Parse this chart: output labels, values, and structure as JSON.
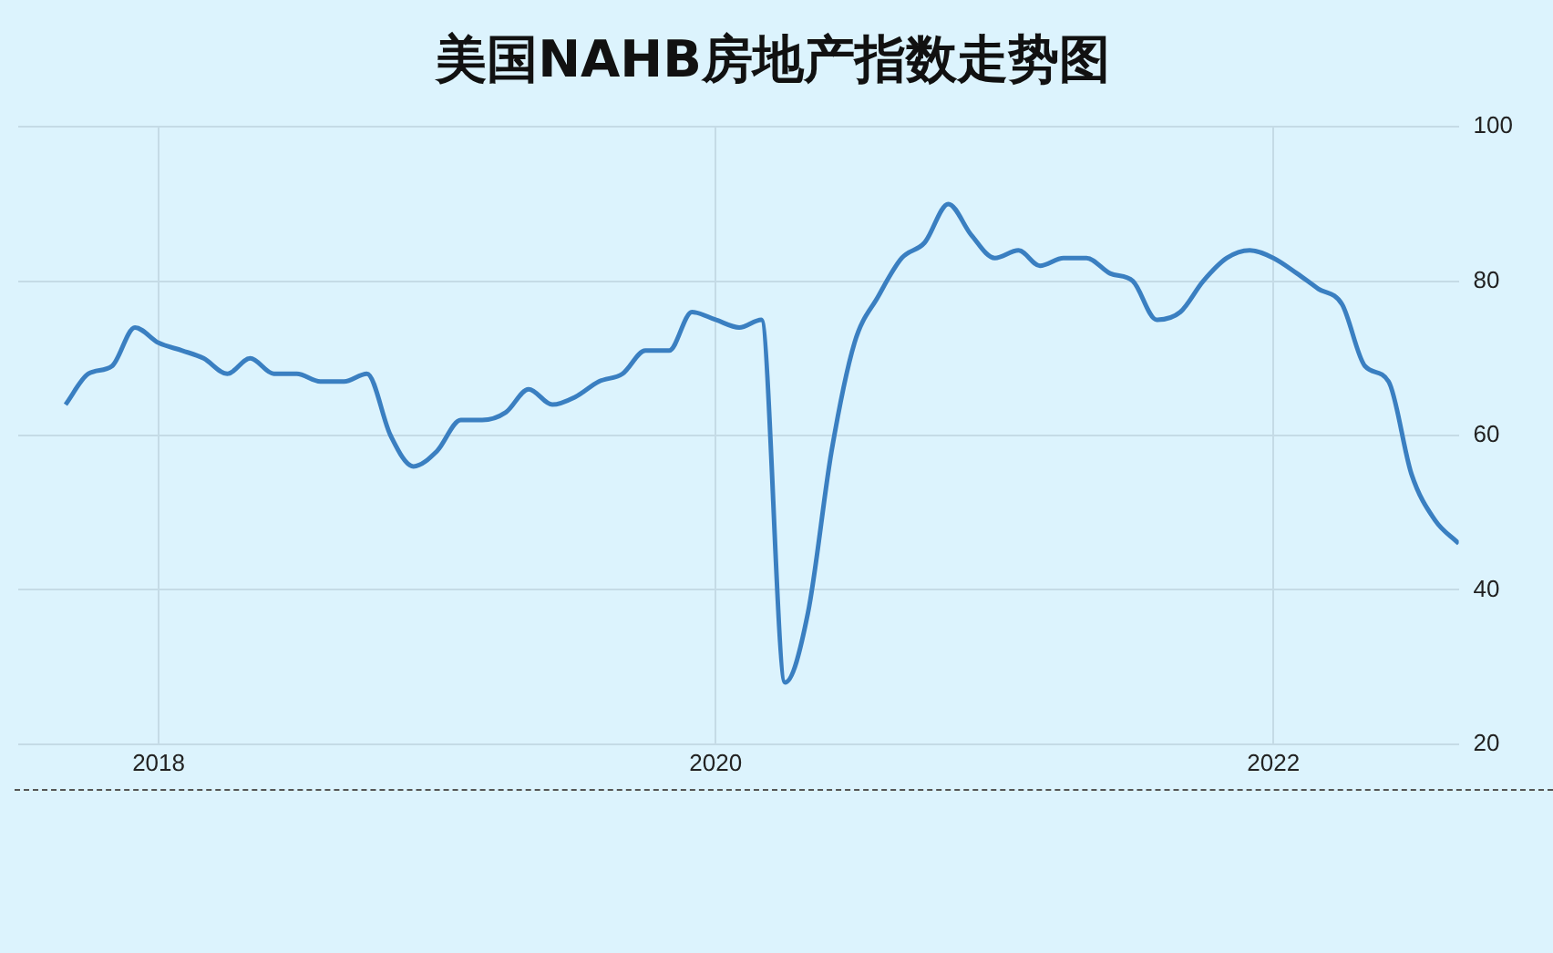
{
  "chart_data": {
    "type": "line",
    "title": "美国NAHB房地产指数走势图",
    "x": [
      "2017-09",
      "2017-10",
      "2017-11",
      "2017-12",
      "2018-01",
      "2018-02",
      "2018-03",
      "2018-04",
      "2018-05",
      "2018-06",
      "2018-07",
      "2018-08",
      "2018-09",
      "2018-10",
      "2018-11",
      "2018-12",
      "2019-01",
      "2019-02",
      "2019-03",
      "2019-04",
      "2019-05",
      "2019-06",
      "2019-07",
      "2019-08",
      "2019-09",
      "2019-10",
      "2019-11",
      "2019-12",
      "2020-01",
      "2020-02",
      "2020-03",
      "2020-04",
      "2020-05",
      "2020-06",
      "2020-07",
      "2020-08",
      "2020-09",
      "2020-10",
      "2020-11",
      "2020-12",
      "2021-01",
      "2021-02",
      "2021-03",
      "2021-04",
      "2021-05",
      "2021-06",
      "2021-07",
      "2021-08",
      "2021-09",
      "2021-10",
      "2021-11",
      "2021-12",
      "2022-01",
      "2022-02",
      "2022-03",
      "2022-04",
      "2022-05",
      "2022-06",
      "2022-07",
      "2022-08",
      "2022-09"
    ],
    "series": [
      {
        "color": "#3a7fc1",
        "values": [
          64,
          68,
          69,
          74,
          72,
          71,
          70,
          68,
          70,
          68,
          68,
          67,
          67,
          68,
          60,
          56,
          58,
          62,
          62,
          63,
          66,
          64,
          65,
          67,
          68,
          71,
          71,
          76,
          75,
          74,
          75,
          28,
          37,
          58,
          72,
          78,
          83,
          85,
          90,
          86,
          83,
          84,
          82,
          83,
          83,
          81,
          80,
          75,
          76,
          80,
          83,
          84,
          83,
          81,
          79,
          77,
          69,
          67,
          55,
          49,
          46
        ]
      }
    ],
    "xlim": [
      "2017-07",
      "2022-09"
    ],
    "xticks": [
      {
        "value": "2018",
        "label": "2018"
      },
      {
        "value": "2020",
        "label": "2020"
      },
      {
        "value": "2022",
        "label": "2022"
      }
    ],
    "ylim": [
      20,
      100
    ],
    "yticks": [
      20,
      40,
      60,
      80,
      100
    ],
    "grid": true,
    "marker": "none",
    "line_style": "solid"
  }
}
